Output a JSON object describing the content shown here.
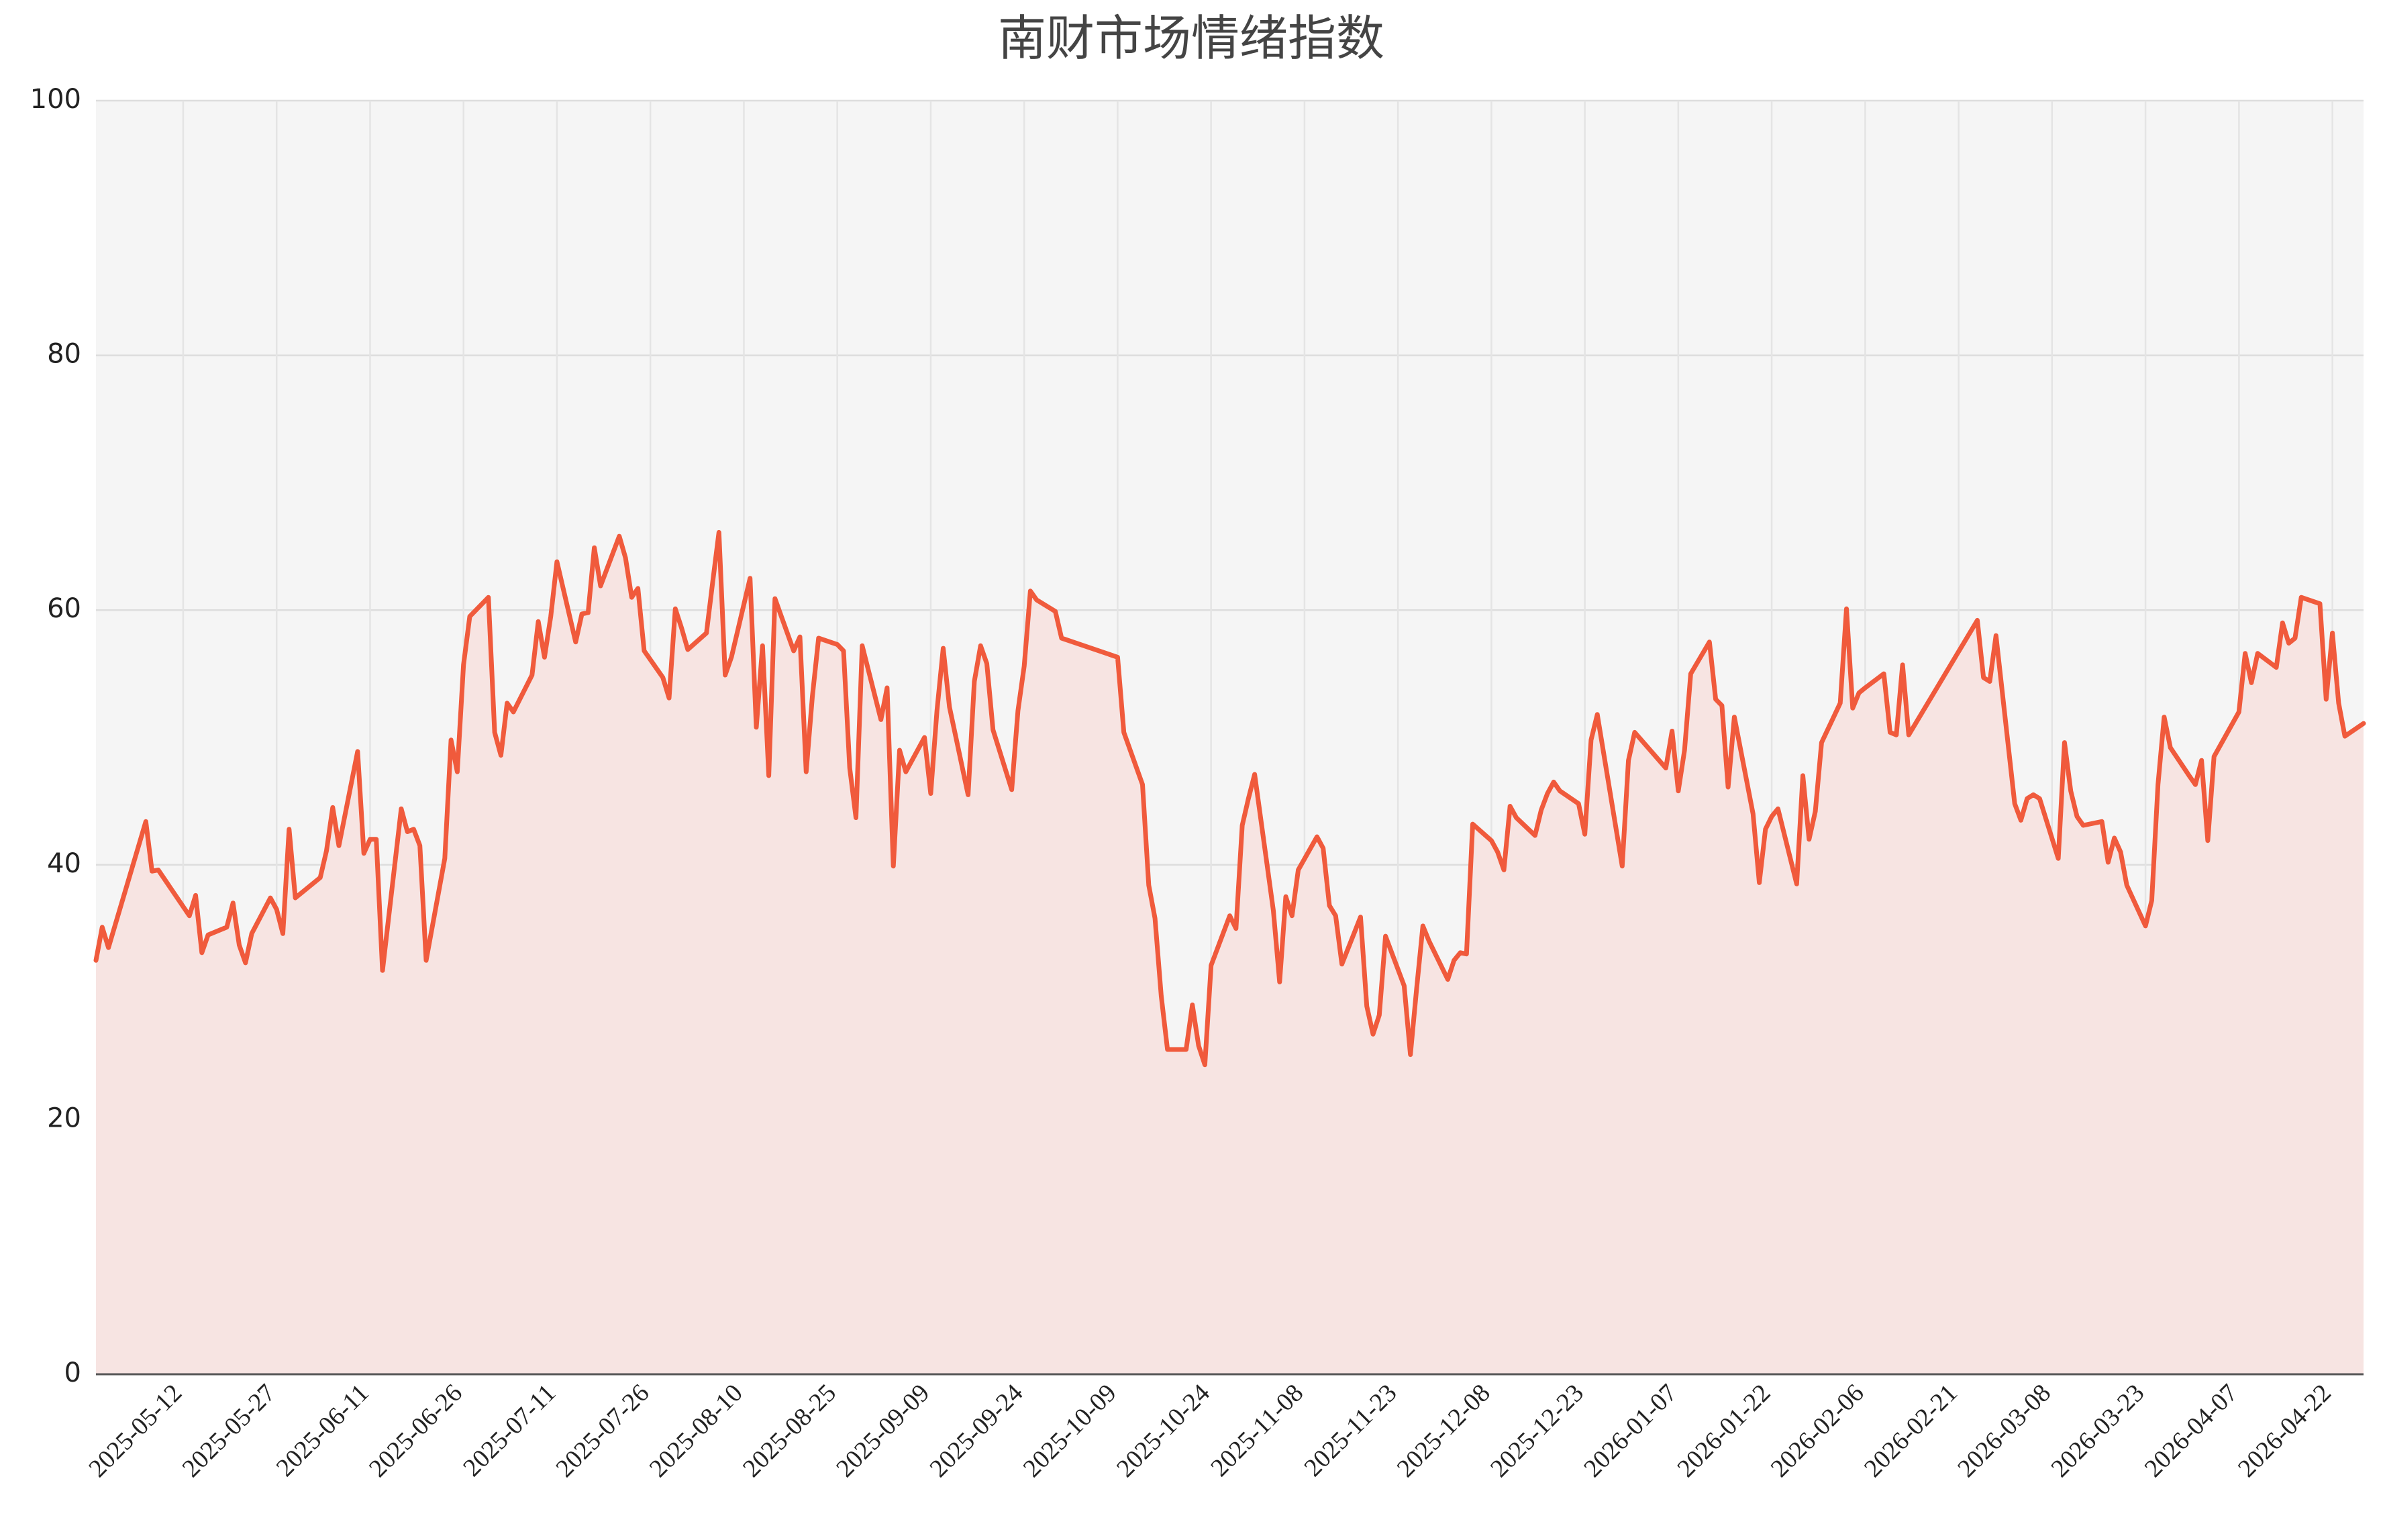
{
  "chart_data": {
    "type": "line",
    "title": "南财市场情绪指数",
    "color": "#f05a3c",
    "fill": "#f7e4e2",
    "area": true,
    "grid": true,
    "xlim": [
      "2025-04-28",
      "2026-04-27"
    ],
    "xticks": [
      "2025-05-12",
      "2025-05-27",
      "2025-06-11",
      "2025-06-26",
      "2025-07-11",
      "2025-07-26",
      "2025-08-10",
      "2025-08-25",
      "2025-09-09",
      "2025-09-24",
      "2025-10-09",
      "2025-10-24",
      "2025-11-08",
      "2025-11-23",
      "2025-12-08",
      "2025-12-23",
      "2026-01-07",
      "2026-01-22",
      "2026-02-06",
      "2026-02-21",
      "2026-03-08",
      "2026-03-23",
      "2026-04-07",
      "2026-04-22"
    ],
    "ylim": [
      0,
      100
    ],
    "yticks": [
      0,
      20,
      40,
      60,
      80,
      100
    ],
    "x": [
      "2025-04-28",
      "2025-04-29",
      "2025-04-30",
      "2025-05-06",
      "2025-05-07",
      "2025-05-08",
      "2025-05-13",
      "2025-05-14",
      "2025-05-15",
      "2025-05-16",
      "2025-05-19",
      "2025-05-20",
      "2025-05-21",
      "2025-05-22",
      "2025-05-23",
      "2025-05-26",
      "2025-05-27",
      "2025-05-28",
      "2025-05-29",
      "2025-05-30",
      "2025-06-03",
      "2025-06-04",
      "2025-06-05",
      "2025-06-06",
      "2025-06-09",
      "2025-06-10",
      "2025-06-11",
      "2025-06-12",
      "2025-06-13",
      "2025-06-16",
      "2025-06-17",
      "2025-06-18",
      "2025-06-19",
      "2025-06-20",
      "2025-06-23",
      "2025-06-24",
      "2025-06-25",
      "2025-06-26",
      "2025-06-27",
      "2025-06-30",
      "2025-07-01",
      "2025-07-02",
      "2025-07-03",
      "2025-07-04",
      "2025-07-07",
      "2025-07-08",
      "2025-07-09",
      "2025-07-10",
      "2025-07-11",
      "2025-07-14",
      "2025-07-15",
      "2025-07-16",
      "2025-07-17",
      "2025-07-18",
      "2025-07-21",
      "2025-07-22",
      "2025-07-23",
      "2025-07-24",
      "2025-07-25",
      "2025-07-28",
      "2025-07-29",
      "2025-07-30",
      "2025-07-31",
      "2025-08-01",
      "2025-08-04",
      "2025-08-05",
      "2025-08-06",
      "2025-08-07",
      "2025-08-08",
      "2025-08-11",
      "2025-08-12",
      "2025-08-13",
      "2025-08-14",
      "2025-08-15",
      "2025-08-18",
      "2025-08-19",
      "2025-08-20",
      "2025-08-21",
      "2025-08-22",
      "2025-08-25",
      "2025-08-26",
      "2025-08-27",
      "2025-08-28",
      "2025-08-29",
      "2025-09-01",
      "2025-09-02",
      "2025-09-03",
      "2025-09-04",
      "2025-09-05",
      "2025-09-08",
      "2025-09-09",
      "2025-09-10",
      "2025-09-11",
      "2025-09-12",
      "2025-09-15",
      "2025-09-16",
      "2025-09-17",
      "2025-09-18",
      "2025-09-19",
      "2025-09-22",
      "2025-09-23",
      "2025-09-24",
      "2025-09-25",
      "2025-09-26",
      "2025-09-29",
      "2025-09-30",
      "2025-10-09",
      "2025-10-10",
      "2025-10-13",
      "2025-10-14",
      "2025-10-15",
      "2025-10-16",
      "2025-10-17",
      "2025-10-20",
      "2025-10-21",
      "2025-10-22",
      "2025-10-23",
      "2025-10-24",
      "2025-10-27",
      "2025-10-28",
      "2025-10-29",
      "2025-10-30",
      "2025-10-31",
      "2025-11-03",
      "2025-11-04",
      "2025-11-05",
      "2025-11-06",
      "2025-11-07",
      "2025-11-10",
      "2025-11-11",
      "2025-11-12",
      "2025-11-13",
      "2025-11-14",
      "2025-11-17",
      "2025-11-18",
      "2025-11-19",
      "2025-11-20",
      "2025-11-21",
      "2025-11-24",
      "2025-11-25",
      "2025-11-26",
      "2025-11-27",
      "2025-11-28",
      "2025-12-01",
      "2025-12-02",
      "2025-12-03",
      "2025-12-04",
      "2025-12-05",
      "2025-12-08",
      "2025-12-09",
      "2025-12-10",
      "2025-12-11",
      "2025-12-12",
      "2025-12-15",
      "2025-12-16",
      "2025-12-17",
      "2025-12-18",
      "2025-12-19",
      "2025-12-22",
      "2025-12-23",
      "2025-12-24",
      "2025-12-25",
      "2025-12-29",
      "2025-12-30",
      "2025-12-31",
      "2026-01-05",
      "2026-01-06",
      "2026-01-07",
      "2026-01-08",
      "2026-01-09",
      "2026-01-12",
      "2026-01-13",
      "2026-01-14",
      "2026-01-15",
      "2026-01-16",
      "2026-01-19",
      "2026-01-20",
      "2026-01-21",
      "2026-01-22",
      "2026-01-23",
      "2026-01-26",
      "2026-01-27",
      "2026-01-28",
      "2026-01-29",
      "2026-01-30",
      "2026-02-02",
      "2026-02-03",
      "2026-02-04",
      "2026-02-05",
      "2026-02-06",
      "2026-02-09",
      "2026-02-10",
      "2026-02-11",
      "2026-02-12",
      "2026-02-13",
      "2026-02-24",
      "2026-02-25",
      "2026-02-26",
      "2026-02-27",
      "2026-03-02",
      "2026-03-03",
      "2026-03-04",
      "2026-03-05",
      "2026-03-06",
      "2026-03-09",
      "2026-03-10",
      "2026-03-11",
      "2026-03-12",
      "2026-03-13",
      "2026-03-16",
      "2026-03-17",
      "2026-03-18",
      "2026-03-19",
      "2026-03-20",
      "2026-03-23",
      "2026-03-24",
      "2026-03-25",
      "2026-03-26",
      "2026-03-27",
      "2026-03-30",
      "2026-03-31",
      "2026-04-01",
      "2026-04-02",
      "2026-04-03",
      "2026-04-07",
      "2026-04-08",
      "2026-04-09",
      "2026-04-10",
      "2026-04-13",
      "2026-04-14",
      "2026-04-15",
      "2026-04-16",
      "2026-04-17",
      "2026-04-20",
      "2026-04-21",
      "2026-04-22",
      "2026-04-23",
      "2026-04-24",
      "2026-04-27"
    ],
    "values": [
      32.5,
      35.1,
      33.5,
      43.4,
      39.5,
      39.6,
      36.0,
      37.6,
      33.1,
      34.5,
      35.1,
      37.0,
      33.7,
      32.3,
      34.6,
      37.4,
      36.5,
      34.6,
      42.8,
      37.4,
      39.0,
      41.1,
      44.5,
      41.5,
      48.9,
      40.9,
      42.0,
      42.0,
      31.7,
      44.4,
      42.6,
      42.8,
      41.5,
      32.5,
      40.5,
      49.8,
      47.3,
      55.7,
      59.5,
      61.0,
      50.4,
      48.6,
      52.7,
      52.0,
      54.9,
      59.1,
      56.3,
      59.5,
      63.8,
      57.5,
      59.7,
      59.8,
      64.9,
      61.9,
      65.8,
      64.1,
      61.0,
      61.7,
      56.8,
      54.7,
      53.1,
      60.1,
      58.6,
      56.9,
      58.2,
      62.2,
      66.1,
      54.9,
      56.3,
      62.5,
      50.8,
      57.2,
      47.0,
      60.9,
      56.8,
      57.9,
      47.3,
      53.2,
      57.8,
      57.3,
      56.8,
      47.6,
      43.7,
      57.2,
      51.4,
      53.9,
      39.9,
      49.0,
      47.3,
      50.0,
      45.6,
      52.1,
      57.0,
      52.4,
      45.5,
      54.4,
      57.2,
      55.8,
      50.6,
      45.9,
      52.1,
      55.6,
      61.5,
      60.8,
      59.9,
      57.8,
      56.3,
      50.4,
      46.3,
      38.4,
      35.8,
      29.7,
      25.5,
      25.5,
      29.0,
      25.8,
      24.3,
      32.1,
      36.0,
      35.0,
      43.1,
      45.2,
      47.1,
      36.4,
      30.8,
      37.5,
      36.0,
      39.6,
      42.2,
      41.3,
      36.8,
      36.0,
      32.2,
      35.9,
      28.9,
      26.7,
      28.2,
      34.4,
      30.5,
      25.1,
      30.3,
      35.2,
      34.0,
      31.0,
      32.5,
      33.1,
      33.0,
      43.2,
      41.9,
      41.0,
      39.6,
      44.6,
      43.7,
      42.3,
      44.3,
      45.6,
      46.5,
      45.8,
      44.8,
      42.4,
      49.8,
      51.8,
      39.9,
      48.2,
      50.4,
      47.6,
      50.5,
      45.8,
      49.0,
      55.0,
      57.5,
      53.0,
      52.5,
      46.1,
      51.6,
      44.0,
      38.6,
      42.8,
      43.8,
      44.4,
      38.5,
      47.0,
      42.0,
      44.2,
      49.6,
      52.7,
      60.1,
      52.3,
      53.5,
      53.9,
      55.0,
      50.4,
      50.2,
      55.7,
      50.2,
      59.2,
      54.7,
      54.4,
      58.0,
      44.8,
      43.5,
      45.2,
      45.5,
      45.2,
      40.5,
      49.6,
      45.8,
      43.8,
      43.1,
      43.4,
      40.2,
      42.1,
      41.0,
      38.4,
      35.2,
      37.2,
      46.3,
      51.6,
      49.2,
      47.0,
      46.3,
      48.2,
      41.9,
      48.5,
      52.0,
      56.6,
      54.3,
      56.6,
      55.5,
      59.0,
      57.4,
      57.8,
      61.0,
      60.5,
      53.0,
      58.2,
      52.7,
      50.1,
      51.1
    ]
  }
}
